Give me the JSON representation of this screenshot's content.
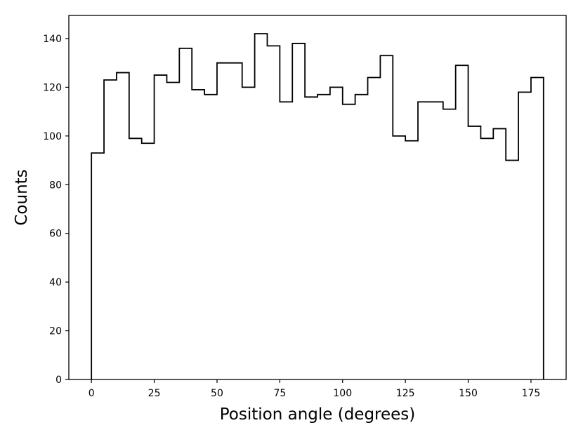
{
  "chart_data": {
    "type": "histogram",
    "xlabel": "Position angle (degrees)",
    "ylabel": "Counts",
    "bin_width": 5,
    "bin_edges": [
      0,
      5,
      10,
      15,
      20,
      25,
      30,
      35,
      40,
      45,
      50,
      55,
      60,
      65,
      70,
      75,
      80,
      85,
      90,
      95,
      100,
      105,
      110,
      115,
      120,
      125,
      130,
      135,
      140,
      145,
      150,
      155,
      160,
      165,
      170,
      175,
      180
    ],
    "values": [
      93,
      123,
      126,
      99,
      97,
      125,
      122,
      136,
      119,
      117,
      130,
      130,
      120,
      142,
      137,
      114,
      138,
      116,
      117,
      120,
      113,
      117,
      124,
      133,
      100,
      98,
      114,
      114,
      111,
      129,
      104,
      99,
      103,
      90,
      118,
      124
    ],
    "xlim": [
      -9,
      189
    ],
    "ylim": [
      0,
      149.5
    ],
    "xticks": [
      0,
      25,
      50,
      75,
      100,
      125,
      150,
      175
    ],
    "yticks": [
      0,
      20,
      40,
      60,
      80,
      100,
      120,
      140
    ],
    "grid": false,
    "histtype": "step",
    "line_color": "#000000"
  }
}
